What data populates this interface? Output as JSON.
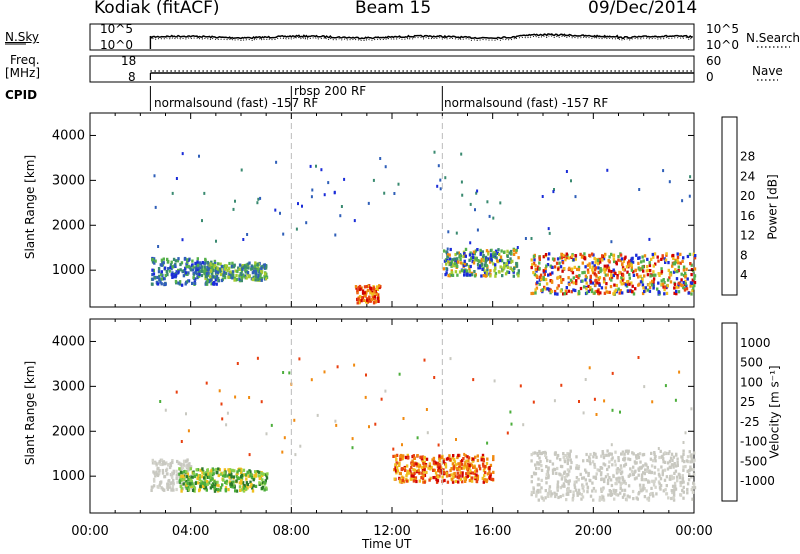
{
  "header": {
    "station": "Kodiak (fitACF)",
    "beam": "Beam 15",
    "date": "09/Dec/2014"
  },
  "strip_labels": {
    "nsky": "N.Sky",
    "nsky_ticks": [
      "10^5",
      "10^0"
    ],
    "nsearch": "N.Search",
    "nsearch_ticks": [
      "10^5",
      "10^0"
    ],
    "freq_label": "Freq.",
    "freq_unit": "[MHz]",
    "freq_ticks": [
      "18",
      "8"
    ],
    "nave": "Nave",
    "nave_ticks": [
      "60",
      "0"
    ],
    "cpid": "CPID",
    "cpid_segments": [
      {
        "label": "normalsound (fast) -157 RF",
        "start_hour": 2.4
      },
      {
        "label": "rbsp 200 RF",
        "start_hour": 8.0
      },
      {
        "label": "normalsound (fast) -157 RF",
        "start_hour": 14.0
      }
    ]
  },
  "chart_data": [
    {
      "type": "heatmap",
      "name": "power",
      "ylabel": "Slant Range [km]",
      "xlabel": "Time UT",
      "xlim": [
        0,
        24
      ],
      "ylim": [
        180,
        4500
      ],
      "x_ticks": [
        "00:00",
        "04:00",
        "08:00",
        "12:00",
        "16:00",
        "20:00",
        "00:00"
      ],
      "y_ticks": [
        1000,
        2000,
        3000,
        4000
      ],
      "colorbar": {
        "label": "Power [dB]",
        "ticks": [
          "4",
          "8",
          "12",
          "16",
          "20",
          "24",
          "28"
        ],
        "colors": [
          "#1a2cd8",
          "#2f5fb8",
          "#3a8a70",
          "#55b04a",
          "#a8cc30",
          "#f0c020",
          "#f08a10",
          "#e84010",
          "#d00000"
        ]
      },
      "regions": [
        {
          "t0": 2.4,
          "t1": 5.0,
          "r0": 700,
          "r1": 1300,
          "level": "blue-green"
        },
        {
          "t0": 4.5,
          "t1": 7.0,
          "r0": 800,
          "r1": 1200,
          "level": "green"
        },
        {
          "t0": 10.5,
          "t1": 11.5,
          "r0": 300,
          "r1": 700,
          "level": "orange"
        },
        {
          "t0": 14.0,
          "t1": 17.0,
          "r0": 900,
          "r1": 1500,
          "level": "green-orange"
        },
        {
          "t0": 17.5,
          "t1": 24.0,
          "r0": 500,
          "r1": 1400,
          "level": "red-orange"
        }
      ]
    },
    {
      "type": "heatmap",
      "name": "velocity",
      "ylabel": "Slant Range [km]",
      "xlabel": "Time UT",
      "xlim": [
        0,
        24
      ],
      "ylim": [
        180,
        4500
      ],
      "x_ticks": [
        "00:00",
        "04:00",
        "08:00",
        "12:00",
        "16:00",
        "20:00",
        "00:00"
      ],
      "y_ticks": [
        1000,
        2000,
        3000,
        4000
      ],
      "colorbar": {
        "label": "Velocity [m s⁻¹]",
        "ticks": [
          "1000",
          "500",
          "100",
          "25",
          "-25",
          "-100",
          "-500",
          "-1000"
        ],
        "colors": [
          "#1a3ec8",
          "#2a7a2a",
          "#4cae3c",
          "#8ad04a",
          "#c8c8c0",
          "#f0c020",
          "#f08a10",
          "#e84010",
          "#d00000"
        ]
      },
      "regions": [
        {
          "t0": 2.4,
          "t1": 4.0,
          "r0": 700,
          "r1": 1400,
          "level": "gray"
        },
        {
          "t0": 3.5,
          "t1": 7.0,
          "r0": 700,
          "r1": 1200,
          "level": "green"
        },
        {
          "t0": 12.0,
          "t1": 16.0,
          "r0": 900,
          "r1": 1500,
          "level": "orange"
        },
        {
          "t0": 17.5,
          "t1": 24.0,
          "r0": 500,
          "r1": 1600,
          "level": "gray"
        }
      ]
    }
  ]
}
